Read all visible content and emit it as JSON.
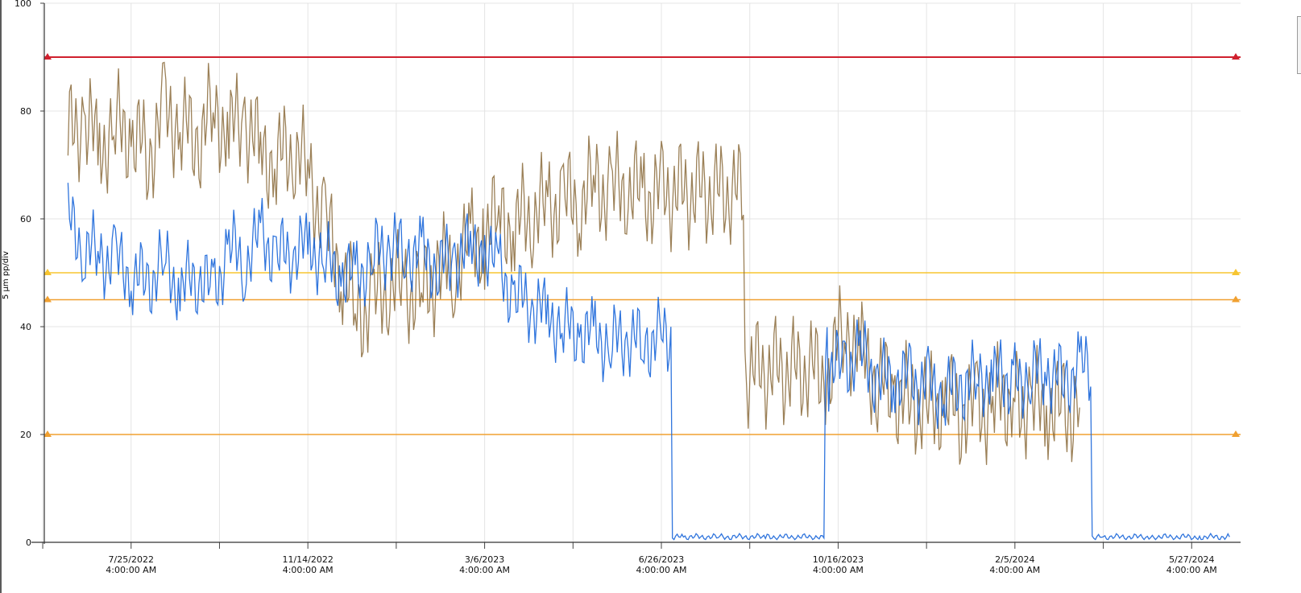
{
  "chart_data": {
    "type": "line",
    "title": "",
    "xlabel": "",
    "ylabel": "5 µm pp/div",
    "ylim": [
      0,
      100
    ],
    "y_ticks": [
      0,
      20,
      40,
      60,
      80,
      100
    ],
    "x_range": [
      "2022-05-31",
      "2024-06-27"
    ],
    "x_tick_labels": [
      {
        "date": "2022-07-25",
        "line1": "7/25/2022",
        "line2": "4:00:00 AM"
      },
      {
        "date": "2022-11-14",
        "line1": "11/14/2022",
        "line2": "4:00:00 AM"
      },
      {
        "date": "2023-03-06",
        "line1": "3/6/2023",
        "line2": "4:00:00 AM"
      },
      {
        "date": "2023-06-26",
        "line1": "6/26/2023",
        "line2": "4:00:00 AM"
      },
      {
        "date": "2023-10-16",
        "line1": "10/16/2023",
        "line2": "4:00:00 AM"
      },
      {
        "date": "2024-02-05",
        "line1": "2/5/2024",
        "line2": "4:00:00 AM"
      },
      {
        "date": "2024-05-27",
        "line1": "5/27/2024",
        "line2": "4:00:00 AM"
      }
    ],
    "grid": true,
    "thresholds": [
      {
        "value": 90,
        "color": "#d0202e"
      },
      {
        "value": 50,
        "color": "#f7c531"
      },
      {
        "value": 45,
        "color": "#f0a030"
      },
      {
        "value": 20,
        "color": "#f0a030"
      }
    ],
    "series": [
      {
        "color": "#8a6a3a",
        "x": [
          "2022-06-15",
          "2022-06-25",
          "2022-07-05",
          "2022-07-15",
          "2022-07-25",
          "2022-08-05",
          "2022-08-15",
          "2022-08-25",
          "2022-09-05",
          "2022-09-15",
          "2022-09-25",
          "2022-10-05",
          "2022-10-15",
          "2022-10-25",
          "2022-11-05",
          "2022-11-15",
          "2022-11-25",
          "2022-12-05",
          "2022-12-15",
          "2022-12-25",
          "2023-01-05",
          "2023-01-15",
          "2023-01-25",
          "2023-02-05",
          "2023-02-15",
          "2023-02-25",
          "2023-03-06",
          "2023-03-15",
          "2023-03-25",
          "2023-04-05",
          "2023-04-15",
          "2023-04-25",
          "2023-05-05",
          "2023-05-15",
          "2023-05-25",
          "2023-06-05",
          "2023-06-15",
          "2023-06-26",
          "2023-10-10",
          "2023-10-20",
          "2023-10-30",
          "2023-11-10",
          "2023-11-20",
          "2023-12-01",
          "2023-12-12",
          "2023-12-22",
          "2024-01-02",
          "2024-01-12",
          "2024-01-22",
          "2024-02-05",
          "2024-02-15",
          "2024-02-25",
          "2024-03-07",
          "2024-03-17"
        ],
        "y": [
          75,
          79,
          73,
          77,
          76,
          72,
          79,
          78,
          74,
          80,
          76,
          79,
          72,
          71,
          73,
          68,
          58,
          52,
          42,
          44,
          48,
          47,
          46,
          50,
          52,
          55,
          58,
          60,
          59,
          61,
          62,
          63,
          64,
          66,
          65,
          66,
          64,
          65,
          32,
          40,
          35,
          30,
          28,
          26,
          25,
          26,
          25,
          24,
          26,
          27,
          25,
          26,
          24,
          25
        ]
      },
      {
        "color": "#1a66d9",
        "x": [
          "2022-06-15",
          "2022-06-25",
          "2022-07-05",
          "2022-07-15",
          "2022-07-25",
          "2022-08-05",
          "2022-08-15",
          "2022-08-25",
          "2022-09-05",
          "2022-09-15",
          "2022-09-25",
          "2022-10-05",
          "2022-10-15",
          "2022-10-25",
          "2022-11-05",
          "2022-11-15",
          "2022-11-25",
          "2022-12-05",
          "2022-12-15",
          "2022-12-25",
          "2023-01-05",
          "2023-01-15",
          "2023-01-25",
          "2023-02-05",
          "2023-02-15",
          "2023-02-25",
          "2023-03-06",
          "2023-03-15",
          "2023-03-25",
          "2023-04-05",
          "2023-04-15",
          "2023-04-25",
          "2023-05-05",
          "2023-05-15",
          "2023-05-25",
          "2023-06-05",
          "2023-06-15",
          "2023-06-26",
          "2023-07-10",
          "2023-08-01",
          "2023-09-01",
          "2023-10-05",
          "2023-10-10",
          "2023-10-20",
          "2023-10-30",
          "2023-11-10",
          "2023-11-20",
          "2023-12-01",
          "2023-12-12",
          "2023-12-22",
          "2024-01-02",
          "2024-01-12",
          "2024-01-22",
          "2024-02-05",
          "2024-02-15",
          "2024-02-25",
          "2024-03-07",
          "2024-03-17",
          "2024-04-01",
          "2024-05-01",
          "2024-06-01",
          "2024-06-20"
        ],
        "y": [
          60,
          55,
          53,
          52,
          50,
          48,
          52,
          47,
          50,
          46,
          55,
          52,
          57,
          53,
          54,
          55,
          52,
          50,
          49,
          53,
          55,
          54,
          53,
          51,
          53,
          54,
          55,
          50,
          46,
          44,
          42,
          40,
          39,
          38,
          37,
          38,
          37,
          38,
          1,
          1,
          1,
          1,
          32,
          33,
          35,
          30,
          31,
          30,
          29,
          28,
          29,
          30,
          31,
          30,
          31,
          32,
          30,
          32,
          1,
          1,
          1,
          1
        ]
      }
    ]
  }
}
